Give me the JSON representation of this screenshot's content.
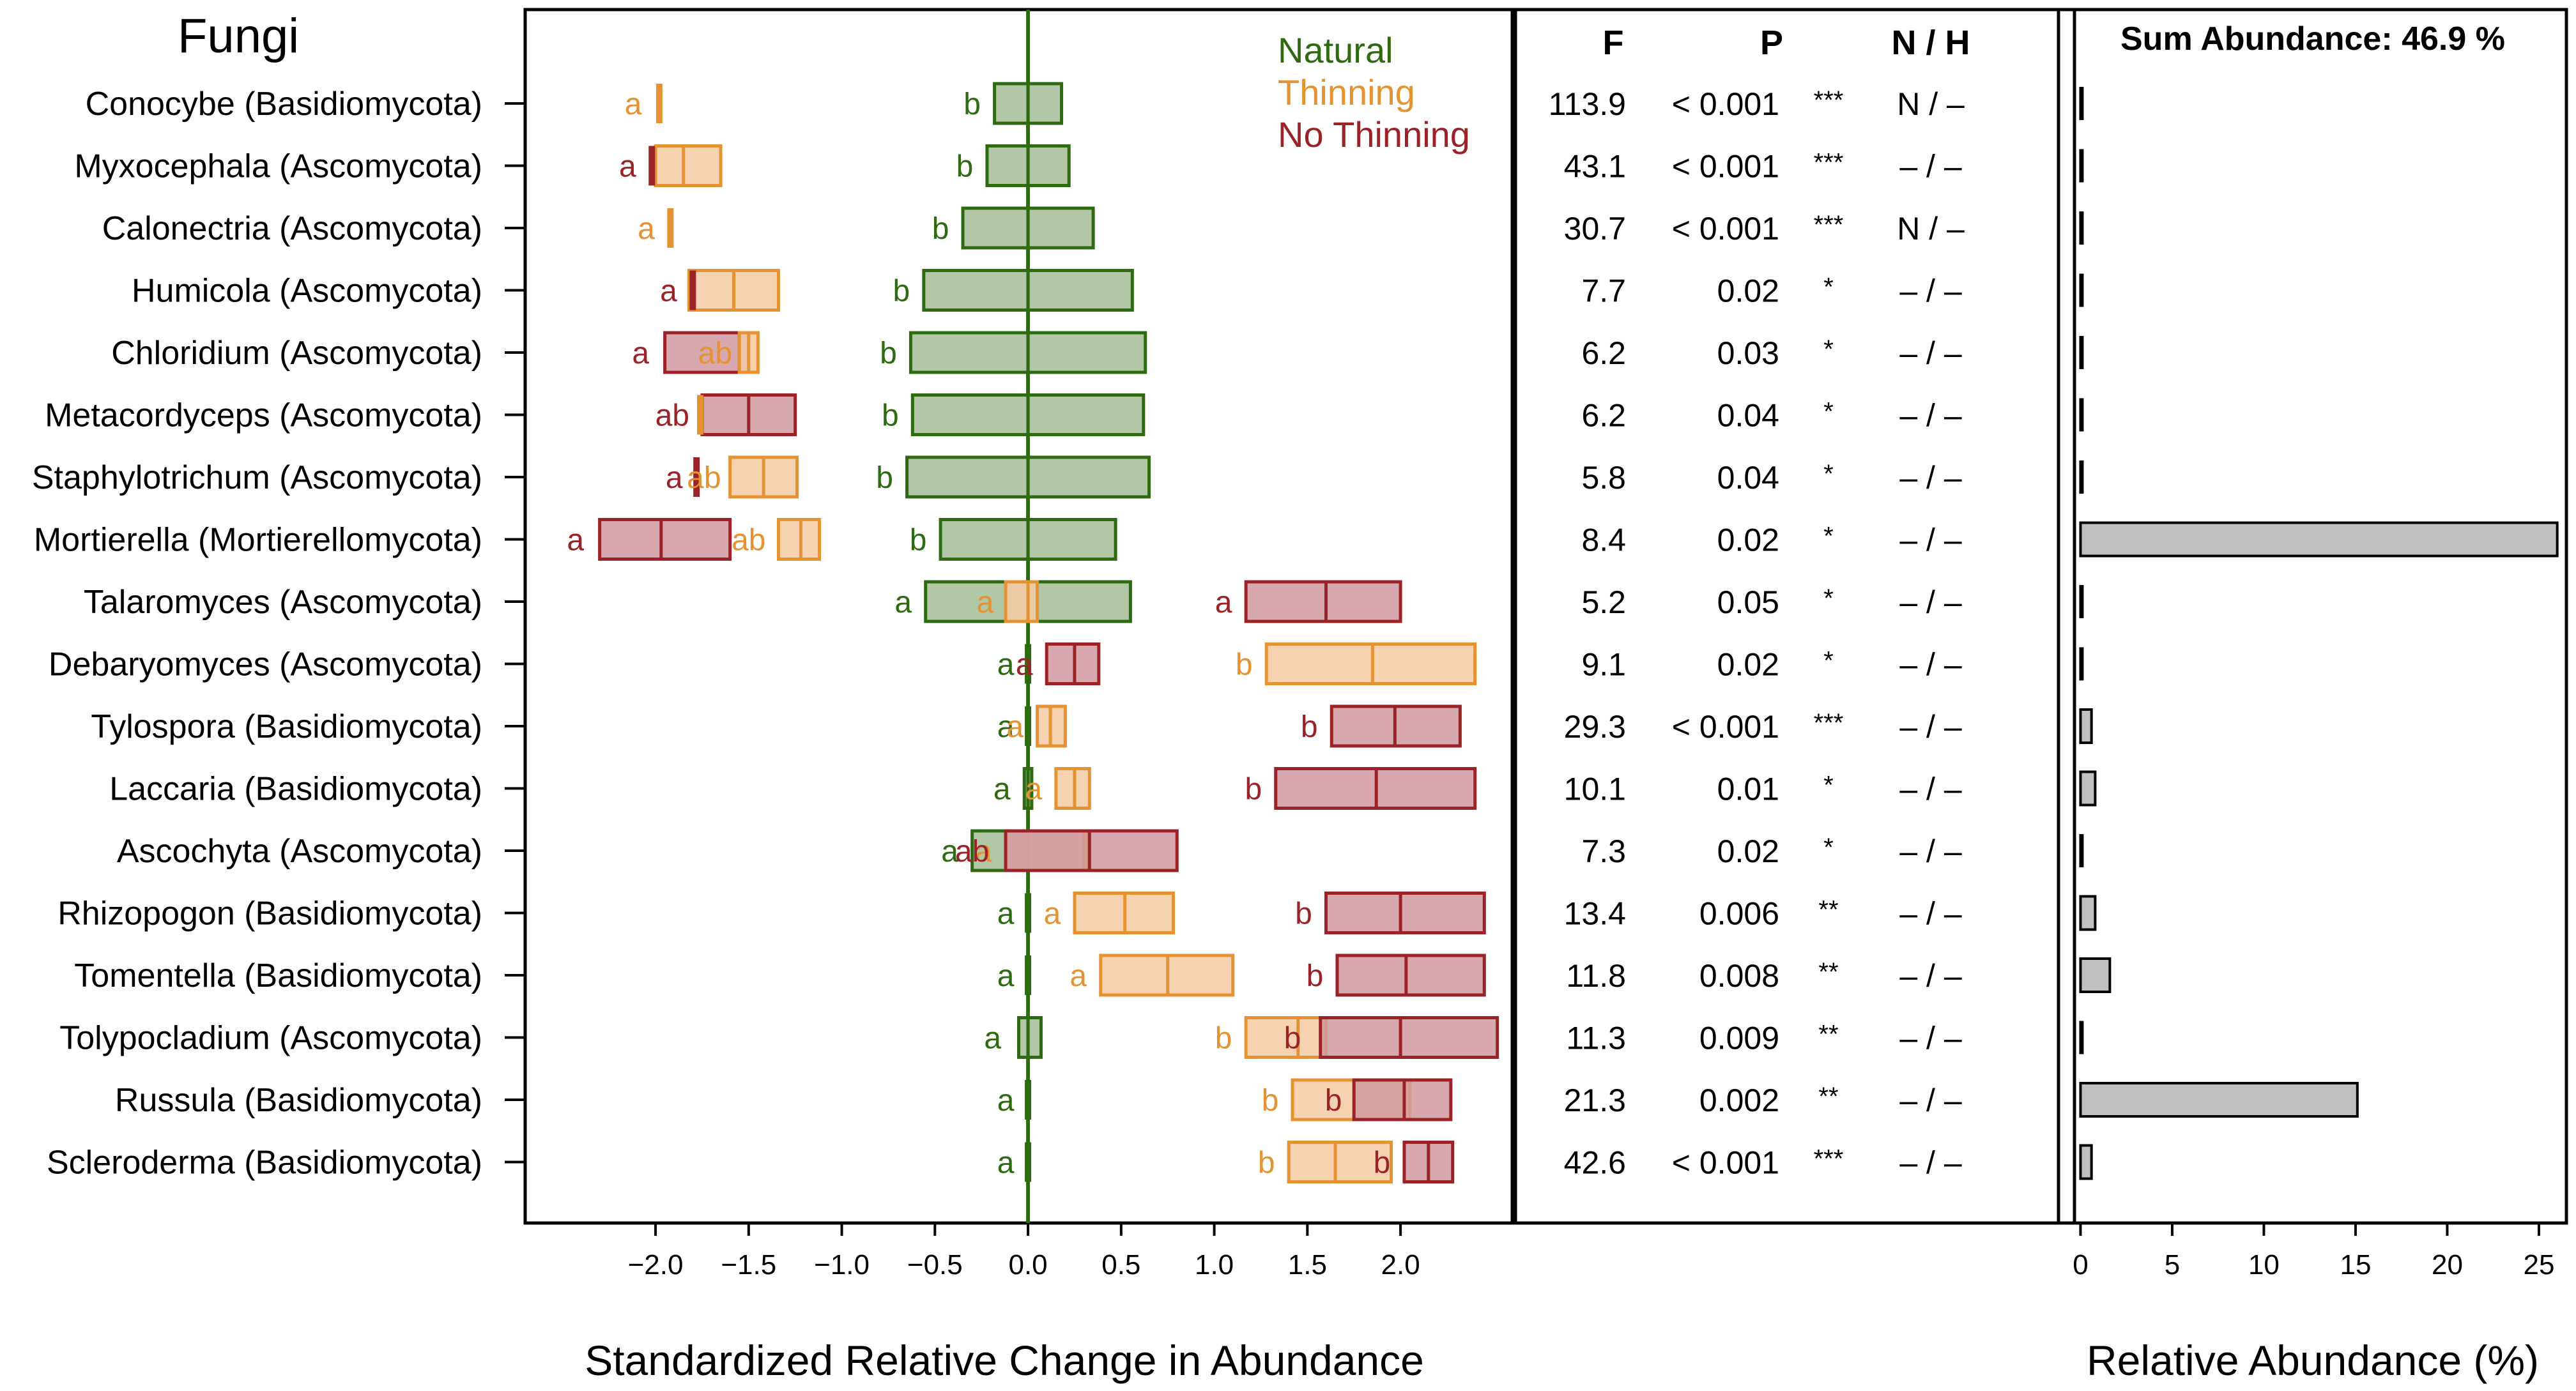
{
  "chart_data": {
    "type": "box-bar-table",
    "title": "Fungi",
    "colors": {
      "natural_stroke": "#2e6b10",
      "natural_fill": "#a4bd96",
      "thinning_stroke": "#e59232",
      "thinning_fill": "#f6caa2",
      "nothinning_stroke": "#9b2328",
      "nothinning_fill": "#d09aa0",
      "bar_fill": "#c0c0c0",
      "axis": "#000000"
    },
    "legend": {
      "position": "top-right",
      "entries": [
        {
          "key": "natural",
          "label": "Natural"
        },
        {
          "key": "thinning",
          "label": "Thinning"
        },
        {
          "key": "nothinning",
          "label": "No Thinning"
        }
      ]
    },
    "left_panel": {
      "xlabel": "Standardized Relative Change in Abundance",
      "xlim": [
        -2.7,
        2.6
      ],
      "ticks": [
        -2.0,
        -1.5,
        -1.0,
        -0.5,
        0.0,
        0.5,
        1.0,
        1.5,
        2.0
      ],
      "tick_labels": [
        "−2.0",
        "−1.5",
        "−1.0",
        "−0.5",
        "0.0",
        "0.5",
        "1.0",
        "1.5",
        "2.0"
      ],
      "reference_line": 0
    },
    "table": {
      "headers": {
        "f": "F",
        "p": "P",
        "nh": "N / H"
      }
    },
    "right_panel": {
      "header": "Sum Abundance: 46.9 %",
      "xlabel": "Relative Abundance (%)",
      "xlim": [
        -1.2,
        26.5
      ],
      "ticks": [
        0,
        5,
        10,
        15,
        20,
        25
      ],
      "tick_labels": [
        "0",
        "5",
        "10",
        "15",
        "20",
        "25"
      ]
    },
    "taxa": [
      {
        "name": "Conocybe (Basidiomycota)",
        "F": "113.9",
        "P": "< 0.001",
        "sig": "***",
        "NH": "N / –",
        "abundance": 0.3,
        "boxes": [
          {
            "group": "natural",
            "lo": -0.18,
            "med": 0.0,
            "hi": 0.18,
            "label": "b",
            "label_x": -0.3
          },
          {
            "group": "thinning",
            "lo": -1.98,
            "med": -1.98,
            "hi": -1.98,
            "label": "a",
            "label_x": -2.12
          }
        ]
      },
      {
        "name": "Myxocephala (Ascomycota)",
        "F": "43.1",
        "P": "< 0.001",
        "sig": "***",
        "NH": "– / –",
        "abundance": 0.1,
        "boxes": [
          {
            "group": "natural",
            "lo": -0.22,
            "med": 0.0,
            "hi": 0.22,
            "label": "b",
            "label_x": -0.34
          },
          {
            "group": "thinning",
            "lo": -2.0,
            "med": -1.85,
            "hi": -1.65
          },
          {
            "group": "nothinning",
            "lo": -2.02,
            "med": -2.02,
            "hi": -2.0,
            "label": "a",
            "label_x": -2.15
          }
        ]
      },
      {
        "name": "Calonectria (Ascomycota)",
        "F": "30.7",
        "P": "< 0.001",
        "sig": "***",
        "NH": "N / –",
        "abundance": 0.1,
        "boxes": [
          {
            "group": "natural",
            "lo": -0.35,
            "med": 0.0,
            "hi": 0.35,
            "label": "b",
            "label_x": -0.47
          },
          {
            "group": "thinning",
            "lo": -1.92,
            "med": -1.92,
            "hi": -1.92,
            "label": "a",
            "label_x": -2.05
          }
        ]
      },
      {
        "name": "Humicola (Ascomycota)",
        "F": "7.7",
        "P": "0.02",
        "sig": "*",
        "NH": "– / –",
        "abundance": 0.1,
        "boxes": [
          {
            "group": "natural",
            "lo": -0.56,
            "med": 0.0,
            "hi": 0.56,
            "label": "b",
            "label_x": -0.68
          },
          {
            "group": "thinning",
            "lo": -1.82,
            "med": -1.58,
            "hi": -1.34
          },
          {
            "group": "nothinning",
            "lo": -1.8,
            "med": -1.8,
            "hi": -1.78,
            "label": "a",
            "label_x": -1.93
          }
        ]
      },
      {
        "name": "Chloridium (Ascomycota)",
        "F": "6.2",
        "P": "0.03",
        "sig": "*",
        "NH": "– / –",
        "abundance": 0.1,
        "boxes": [
          {
            "group": "natural",
            "lo": -0.63,
            "med": 0.0,
            "hi": 0.63,
            "label": "b",
            "label_x": -0.75
          },
          {
            "group": "nothinning",
            "lo": -1.95,
            "med": -1.55,
            "hi": -1.5,
            "label": "a",
            "label_x": -2.08
          },
          {
            "group": "thinning",
            "lo": -1.55,
            "med": -1.5,
            "hi": -1.45,
            "label": "ab",
            "label_x": -1.68
          }
        ]
      },
      {
        "name": "Metacordyceps (Ascomycota)",
        "F": "6.2",
        "P": "0.04",
        "sig": "*",
        "NH": "– / –",
        "abundance": 0.1,
        "boxes": [
          {
            "group": "natural",
            "lo": -0.62,
            "med": 0.0,
            "hi": 0.62,
            "label": "b",
            "label_x": -0.74
          },
          {
            "group": "nothinning",
            "lo": -1.75,
            "med": -1.5,
            "hi": -1.25,
            "label": "ab",
            "label_x": -1.91
          },
          {
            "group": "thinning",
            "lo": -1.76,
            "med": -1.76,
            "hi": -1.74
          }
        ]
      },
      {
        "name": "Staphylotrichum (Ascomycota)",
        "F": "5.8",
        "P": "0.04",
        "sig": "*",
        "NH": "– / –",
        "abundance": 0.1,
        "boxes": [
          {
            "group": "natural",
            "lo": -0.65,
            "med": 0.0,
            "hi": 0.65,
            "label": "b",
            "label_x": -0.77
          },
          {
            "group": "thinning",
            "lo": -1.6,
            "med": -1.42,
            "hi": -1.24,
            "label": "ab",
            "label_x": -1.74
          },
          {
            "group": "nothinning",
            "lo": -1.78,
            "med": -1.78,
            "hi": -1.78,
            "label": "a",
            "label_x": -1.9
          }
        ]
      },
      {
        "name": "Mortierella (Mortierellomycota)",
        "F": "8.4",
        "P": "0.02",
        "sig": "*",
        "NH": "– / –",
        "abundance": 26.0,
        "boxes": [
          {
            "group": "natural",
            "lo": -0.47,
            "med": 0.0,
            "hi": 0.47,
            "label": "b",
            "label_x": -0.59
          },
          {
            "group": "nothinning",
            "lo": -2.3,
            "med": -1.97,
            "hi": -1.6,
            "label": "a",
            "label_x": -2.43
          },
          {
            "group": "thinning",
            "lo": -1.34,
            "med": -1.22,
            "hi": -1.12,
            "label": "ab",
            "label_x": -1.5
          }
        ]
      },
      {
        "name": "Talaromyces (Ascomycota)",
        "F": "5.2",
        "P": "0.05",
        "sig": "*",
        "NH": "– / –",
        "abundance": 0.2,
        "boxes": [
          {
            "group": "natural",
            "lo": -0.55,
            "med": 0.0,
            "hi": 0.55,
            "label": "a",
            "label_x": -0.67
          },
          {
            "group": "thinning",
            "lo": -0.12,
            "med": 0.0,
            "hi": 0.05,
            "label": "a",
            "label_x": -0.23
          },
          {
            "group": "nothinning",
            "lo": 1.17,
            "med": 1.6,
            "hi": 2.0,
            "label": "a",
            "label_x": 1.05
          }
        ]
      },
      {
        "name": "Debaryomyces (Ascomycota)",
        "F": "9.1",
        "P": "0.02",
        "sig": "*",
        "NH": "– / –",
        "abundance": 0.3,
        "boxes": [
          {
            "group": "natural",
            "lo": 0.0,
            "med": 0.0,
            "hi": 0.0,
            "label": "a",
            "label_x": -0.12
          },
          {
            "group": "nothinning",
            "lo": 0.1,
            "med": 0.25,
            "hi": 0.38,
            "label": "a",
            "label_x": -0.02
          },
          {
            "group": "thinning",
            "lo": 1.28,
            "med": 1.85,
            "hi": 2.4,
            "label": "b",
            "label_x": 1.16
          }
        ]
      },
      {
        "name": "Tylospora (Basidiomycota)",
        "F": "29.3",
        "P": "< 0.001",
        "sig": "***",
        "NH": "– / –",
        "abundance": 0.6,
        "boxes": [
          {
            "group": "natural",
            "lo": 0.0,
            "med": 0.0,
            "hi": 0.0,
            "label": "a",
            "label_x": -0.12
          },
          {
            "group": "thinning",
            "lo": 0.05,
            "med": 0.12,
            "hi": 0.2,
            "label": "a",
            "label_x": -0.07
          },
          {
            "group": "nothinning",
            "lo": 1.63,
            "med": 1.97,
            "hi": 2.32,
            "label": "b",
            "label_x": 1.51
          }
        ]
      },
      {
        "name": "Laccaria (Basidiomycota)",
        "F": "10.1",
        "P": "0.01",
        "sig": "*",
        "NH": "– / –",
        "abundance": 0.8,
        "boxes": [
          {
            "group": "natural",
            "lo": -0.02,
            "med": 0.0,
            "hi": 0.02,
            "label": "a",
            "label_x": -0.14
          },
          {
            "group": "thinning",
            "lo": 0.15,
            "med": 0.25,
            "hi": 0.33,
            "label": "a",
            "label_x": 0.03
          },
          {
            "group": "nothinning",
            "lo": 1.33,
            "med": 1.87,
            "hi": 2.4,
            "label": "b",
            "label_x": 1.21
          }
        ]
      },
      {
        "name": "Ascochyta (Ascomycota)",
        "F": "7.3",
        "P": "0.02",
        "sig": "*",
        "NH": "– / –",
        "abundance": 0.4,
        "boxes": [
          {
            "group": "natural",
            "lo": -0.3,
            "med": 0.0,
            "hi": 0.3,
            "label": "a",
            "label_x": -0.42
          },
          {
            "group": "thinning",
            "lo": -0.12,
            "med": 0.3,
            "hi": 0.32,
            "label": "a",
            "label_x": -0.24
          },
          {
            "group": "nothinning",
            "lo": -0.12,
            "med": 0.33,
            "hi": 0.8,
            "label": "ab",
            "label_x": -0.3
          }
        ]
      },
      {
        "name": "Rhizopogon (Basidiomycota)",
        "F": "13.4",
        "P": "0.006",
        "sig": "**",
        "NH": "– / –",
        "abundance": 0.8,
        "boxes": [
          {
            "group": "natural",
            "lo": 0.0,
            "med": 0.0,
            "hi": 0.0,
            "label": "a",
            "label_x": -0.12
          },
          {
            "group": "thinning",
            "lo": 0.25,
            "med": 0.52,
            "hi": 0.78,
            "label": "a",
            "label_x": 0.13
          },
          {
            "group": "nothinning",
            "lo": 1.6,
            "med": 2.0,
            "hi": 2.45,
            "label": "b",
            "label_x": 1.48
          }
        ]
      },
      {
        "name": "Tomentella (Basidiomycota)",
        "F": "11.8",
        "P": "0.008",
        "sig": "**",
        "NH": "– / –",
        "abundance": 1.6,
        "boxes": [
          {
            "group": "natural",
            "lo": 0.0,
            "med": 0.0,
            "hi": 0.0,
            "label": "a",
            "label_x": -0.12
          },
          {
            "group": "thinning",
            "lo": 0.39,
            "med": 0.75,
            "hi": 1.1,
            "label": "a",
            "label_x": 0.27
          },
          {
            "group": "nothinning",
            "lo": 1.66,
            "med": 2.03,
            "hi": 2.45,
            "label": "b",
            "label_x": 1.54
          }
        ]
      },
      {
        "name": "Tolypocladium (Ascomycota)",
        "F": "11.3",
        "P": "0.009",
        "sig": "**",
        "NH": "– / –",
        "abundance": 0.1,
        "boxes": [
          {
            "group": "natural",
            "lo": -0.05,
            "med": 0.0,
            "hi": 0.07,
            "label": "a",
            "label_x": -0.19
          },
          {
            "group": "thinning",
            "lo": 1.17,
            "med": 1.45,
            "hi": 1.6,
            "label": "b",
            "label_x": 1.05
          },
          {
            "group": "nothinning",
            "lo": 1.57,
            "med": 2.0,
            "hi": 2.52,
            "label": "b",
            "label_x": 1.42
          }
        ]
      },
      {
        "name": "Russula (Basidiomycota)",
        "F": "21.3",
        "P": "0.002",
        "sig": "**",
        "NH": "– / –",
        "abundance": 15.1,
        "boxes": [
          {
            "group": "natural",
            "lo": 0.0,
            "med": 0.0,
            "hi": 0.0,
            "label": "a",
            "label_x": -0.12
          },
          {
            "group": "thinning",
            "lo": 1.42,
            "med": 1.75,
            "hi": 2.05,
            "label": "b",
            "label_x": 1.3
          },
          {
            "group": "nothinning",
            "lo": 1.75,
            "med": 2.02,
            "hi": 2.27,
            "label": "b",
            "label_x": 1.64
          }
        ]
      },
      {
        "name": "Scleroderma (Basidiomycota)",
        "F": "42.6",
        "P": "< 0.001",
        "sig": "***",
        "NH": "– / –",
        "abundance": 0.6,
        "boxes": [
          {
            "group": "natural",
            "lo": 0.0,
            "med": 0.0,
            "hi": 0.0,
            "label": "a",
            "label_x": -0.12
          },
          {
            "group": "thinning",
            "lo": 1.4,
            "med": 1.65,
            "hi": 1.95,
            "label": "b",
            "label_x": 1.28
          },
          {
            "group": "nothinning",
            "lo": 2.02,
            "med": 2.15,
            "hi": 2.28,
            "label": "b",
            "label_x": 1.9
          }
        ]
      }
    ]
  }
}
